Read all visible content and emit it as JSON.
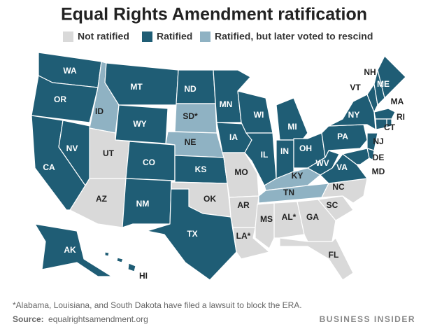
{
  "title": "Equal Rights Amendment ratification",
  "legend": [
    {
      "label": "Not ratified",
      "color": "#d9d9d9"
    },
    {
      "label": "Ratified",
      "color": "#1f5d75"
    },
    {
      "label": "Ratified, but later voted to rescind",
      "color": "#8fb2c3"
    }
  ],
  "states": [
    {
      "label": "WA",
      "status": 1
    },
    {
      "label": "OR",
      "status": 1
    },
    {
      "label": "CA",
      "status": 1
    },
    {
      "label": "NV",
      "status": 1
    },
    {
      "label": "ID",
      "status": 2
    },
    {
      "label": "MT",
      "status": 1
    },
    {
      "label": "WY",
      "status": 1
    },
    {
      "label": "UT",
      "status": 0
    },
    {
      "label": "AZ",
      "status": 0
    },
    {
      "label": "CO",
      "status": 1
    },
    {
      "label": "NM",
      "status": 1
    },
    {
      "label": "ND",
      "status": 1
    },
    {
      "label": "SD*",
      "status": 2
    },
    {
      "label": "NE",
      "status": 2
    },
    {
      "label": "KS",
      "status": 1
    },
    {
      "label": "OK",
      "status": 0
    },
    {
      "label": "TX",
      "status": 1
    },
    {
      "label": "MN",
      "status": 1
    },
    {
      "label": "IA",
      "status": 1
    },
    {
      "label": "MO",
      "status": 0
    },
    {
      "label": "AR",
      "status": 0
    },
    {
      "label": "LA*",
      "status": 0
    },
    {
      "label": "WI",
      "status": 1
    },
    {
      "label": "IL",
      "status": 1
    },
    {
      "label": "MI",
      "status": 1
    },
    {
      "label": "IN",
      "status": 1
    },
    {
      "label": "OH",
      "status": 1
    },
    {
      "label": "KY",
      "status": 2
    },
    {
      "label": "TN",
      "status": 2
    },
    {
      "label": "MS",
      "status": 0
    },
    {
      "label": "AL*",
      "status": 0
    },
    {
      "label": "GA",
      "status": 0
    },
    {
      "label": "FL",
      "status": 0
    },
    {
      "label": "SC",
      "status": 0
    },
    {
      "label": "NC",
      "status": 0
    },
    {
      "label": "VA",
      "status": 1
    },
    {
      "label": "WV",
      "status": 1
    },
    {
      "label": "PA",
      "status": 1
    },
    {
      "label": "NY",
      "status": 1
    },
    {
      "label": "VT",
      "status": 1
    },
    {
      "label": "NH",
      "status": 1
    },
    {
      "label": "ME",
      "status": 1
    },
    {
      "label": "MA",
      "status": 1
    },
    {
      "label": "CT",
      "status": 1
    },
    {
      "label": "RI",
      "status": 1
    },
    {
      "label": "NJ",
      "status": 1
    },
    {
      "label": "DE",
      "status": 1
    },
    {
      "label": "MD",
      "status": 1
    },
    {
      "label": "AK",
      "status": 1
    },
    {
      "label": "HI",
      "status": 1
    }
  ],
  "footnote": "*Alabama, Louisiana, and South Dakota have filed a lawsuit to block the ERA.",
  "source": {
    "label": "Source:",
    "text": "equalrightsamendment.org"
  },
  "brand": "BUSINESS INSIDER"
}
